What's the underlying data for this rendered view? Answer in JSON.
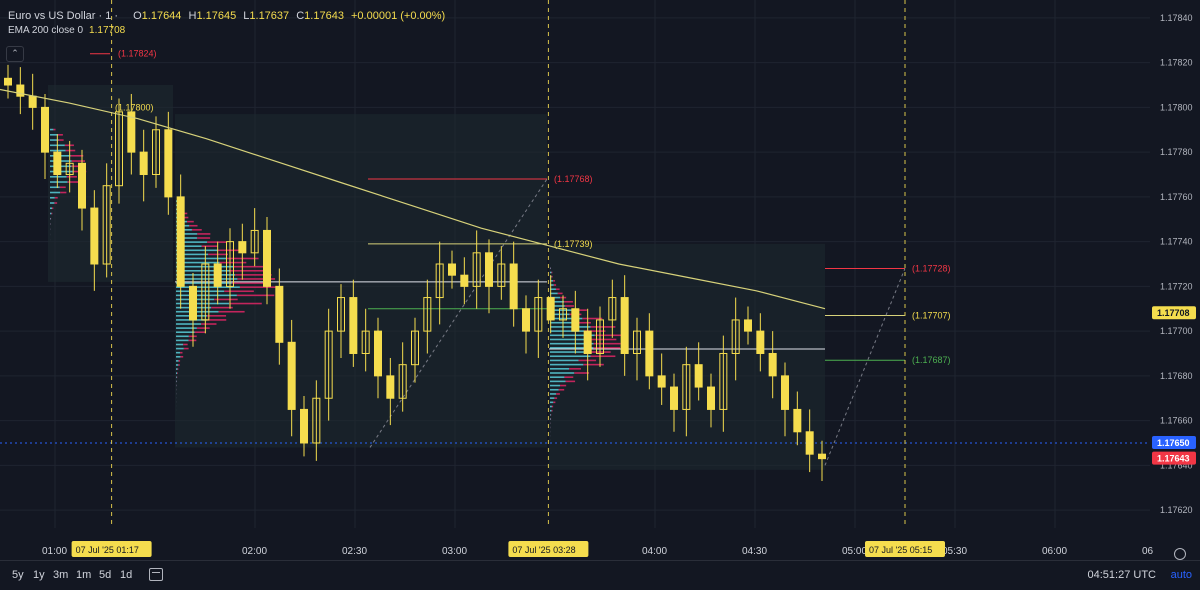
{
  "header": {
    "symbol": "Euro vs US Dollar · 1 ·",
    "open_label": "O",
    "open": "1.17644",
    "high_label": "H",
    "high": "1.17645",
    "low_label": "L",
    "low": "1.17637",
    "close_label": "C",
    "close": "1.17643",
    "change": "+0.00001 (+0.00%)",
    "indicator": "EMA 200 close 0",
    "indicator_value": "1.17708"
  },
  "colors": {
    "bg": "#131722",
    "up": "#f5dd4e",
    "down": "#f5dd4e",
    "ema": "#d7d27a",
    "poc": "#e0e3eb",
    "res": "#f23645",
    "sup": "#4caf50",
    "vp_up": "#4fb3bf",
    "vp_down": "#c2255c"
  },
  "chart_data": {
    "type": "candlestick",
    "y_range": [
      1.17635,
      1.17848
    ],
    "y_ticks": [
      "1.17840",
      "1.17820",
      "1.17800",
      "1.17780",
      "1.17760",
      "1.17740",
      "1.17720",
      "1.17700",
      "1.17680",
      "1.17660",
      "1.17640",
      "1.17620"
    ],
    "y_tick_values": [
      1.1784,
      1.1782,
      1.178,
      1.1778,
      1.1776,
      1.1774,
      1.1772,
      1.177,
      1.1768,
      1.1766,
      1.1764,
      1.1762
    ],
    "x_range_minutes": [
      0.65,
      3.75
    ],
    "x_ticks": [
      {
        "label": "01:00",
        "t": 1.0
      },
      {
        "label": "02:00",
        "t": 2.0
      },
      {
        "label": "02:30",
        "t": 2.5
      },
      {
        "label": "03:00",
        "t": 3.0
      },
      {
        "label": "04:00",
        "t": 4.0
      },
      {
        "label": "04:30",
        "t": 4.5
      },
      {
        "label": "05:00",
        "t": 5.0
      },
      {
        "label": "05:30",
        "t": 5.5
      },
      {
        "label": "06:00",
        "t": 6.0
      },
      {
        "label": "06",
        "t": 6.5
      }
    ],
    "x_highlights": [
      {
        "label": "07 Jul '25   01:17",
        "t": 1.283
      },
      {
        "label": "07 Jul '25   03:28",
        "t": 3.467
      },
      {
        "label": "07 Jul '25   05:15",
        "t": 5.25
      }
    ],
    "price_labels": [
      {
        "label": "1.17708",
        "value": 1.17708,
        "kind": "ema"
      },
      {
        "label": "1.17650",
        "value": 1.1765,
        "kind": "blue"
      },
      {
        "label": "1.17643",
        "value": 1.17643,
        "kind": "red"
      }
    ],
    "level_labels": [
      {
        "label": "(1.17824)",
        "value": 1.17824,
        "kind": "res"
      },
      {
        "label": "(1.17800)",
        "value": 1.178,
        "kind": "high"
      },
      {
        "label": "(1.17768)",
        "value": 1.17768,
        "kind": "res"
      },
      {
        "label": "(1.17739)",
        "value": 1.17739,
        "kind": "high"
      },
      {
        "label": "(1.17728)",
        "value": 1.17728,
        "kind": "res"
      },
      {
        "label": "(1.17707)",
        "value": 1.17707,
        "kind": "high"
      },
      {
        "label": "(1.17687)",
        "value": 1.17687,
        "kind": "sup"
      }
    ],
    "ema_series": [
      1.17808,
      1.17802,
      1.17795,
      1.17786,
      1.17776,
      1.17766,
      1.17756,
      1.17746,
      1.17738,
      1.1773,
      1.17724,
      1.17718,
      1.1771
    ],
    "close_series": [
      1.1781,
      1.17805,
      1.178,
      1.1778,
      1.1777,
      1.17775,
      1.17755,
      1.1773,
      1.17765,
      1.17798,
      1.1778,
      1.1777,
      1.1779,
      1.1776,
      1.1772,
      1.17705,
      1.1773,
      1.1772,
      1.1774,
      1.17735,
      1.17745,
      1.1772,
      1.17695,
      1.17665,
      1.1765,
      1.1767,
      1.177,
      1.17715,
      1.1769,
      1.177,
      1.1768,
      1.1767,
      1.17685,
      1.177,
      1.17715,
      1.1773,
      1.17725,
      1.1772,
      1.17735,
      1.1772,
      1.1773,
      1.1771,
      1.177,
      1.17715,
      1.17705,
      1.1771,
      1.177,
      1.1769,
      1.17705,
      1.17715,
      1.1769,
      1.177,
      1.1768,
      1.17675,
      1.17665,
      1.17685,
      1.17675,
      1.17665,
      1.1769,
      1.17705,
      1.177,
      1.1769,
      1.1768,
      1.17665,
      1.17655,
      1.17645,
      1.17643
    ]
  },
  "bottom": {
    "timeframes": [
      "5y",
      "1y",
      "3m",
      "1m",
      "5d",
      "1d"
    ],
    "clock": "04:51:27 UTC",
    "auto": "auto"
  }
}
